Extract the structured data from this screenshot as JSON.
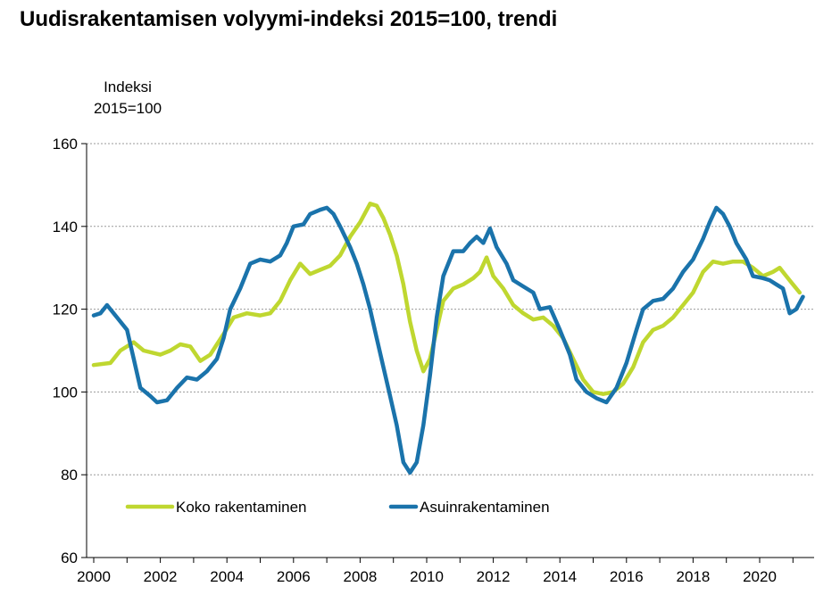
{
  "title": "Uudisrakentamisen volyymi-indeksi 2015=100, trendi",
  "chart_data": {
    "type": "line",
    "title": "Uudisrakentamisen volyymi-indeksi 2015=100, trendi",
    "ylabel": [
      "Indeksi",
      "2015=100"
    ],
    "xlabel": "",
    "xlim": [
      2000,
      2021.3
    ],
    "ylim": [
      60,
      160
    ],
    "yticks": [
      "60",
      "80",
      "100",
      "120",
      "140",
      "160"
    ],
    "xticks": [
      "2000",
      "2002",
      "2004",
      "2006",
      "2008",
      "2010",
      "2012",
      "2014",
      "2016",
      "2018",
      "2020"
    ],
    "grid": "horizontal dotted",
    "legend_position": "lower-left",
    "series": [
      {
        "name": "Koko rakentaminen",
        "color": "#bfd730",
        "points": [
          [
            2000.0,
            106.5
          ],
          [
            2000.5,
            107
          ],
          [
            2000.8,
            110
          ],
          [
            2001.2,
            112
          ],
          [
            2001.5,
            110
          ],
          [
            2002.0,
            109
          ],
          [
            2002.3,
            110
          ],
          [
            2002.6,
            111.5
          ],
          [
            2002.9,
            111
          ],
          [
            2003.2,
            107.5
          ],
          [
            2003.5,
            109
          ],
          [
            2003.9,
            114
          ],
          [
            2004.2,
            118
          ],
          [
            2004.6,
            119
          ],
          [
            2005.0,
            118.5
          ],
          [
            2005.3,
            119
          ],
          [
            2005.6,
            122
          ],
          [
            2005.9,
            127
          ],
          [
            2006.2,
            131
          ],
          [
            2006.5,
            128.5
          ],
          [
            2006.8,
            129.5
          ],
          [
            2007.1,
            130.5
          ],
          [
            2007.4,
            133
          ],
          [
            2007.7,
            137.5
          ],
          [
            2008.0,
            141
          ],
          [
            2008.3,
            145.5
          ],
          [
            2008.5,
            145
          ],
          [
            2008.7,
            142
          ],
          [
            2008.9,
            138
          ],
          [
            2009.1,
            133
          ],
          [
            2009.3,
            126
          ],
          [
            2009.5,
            117
          ],
          [
            2009.7,
            110
          ],
          [
            2009.9,
            105
          ],
          [
            2010.1,
            108
          ],
          [
            2010.3,
            115
          ],
          [
            2010.5,
            122
          ],
          [
            2010.8,
            125
          ],
          [
            2011.1,
            126
          ],
          [
            2011.4,
            127.5
          ],
          [
            2011.6,
            129
          ],
          [
            2011.8,
            132.5
          ],
          [
            2012.0,
            128
          ],
          [
            2012.3,
            125
          ],
          [
            2012.6,
            121
          ],
          [
            2012.9,
            119
          ],
          [
            2013.2,
            117.5
          ],
          [
            2013.5,
            118
          ],
          [
            2013.8,
            116
          ],
          [
            2014.1,
            113
          ],
          [
            2014.4,
            108
          ],
          [
            2014.7,
            103
          ],
          [
            2015.0,
            100
          ],
          [
            2015.3,
            99.5
          ],
          [
            2015.6,
            100
          ],
          [
            2015.9,
            102
          ],
          [
            2016.2,
            106
          ],
          [
            2016.5,
            112
          ],
          [
            2016.8,
            115
          ],
          [
            2017.1,
            116
          ],
          [
            2017.4,
            118
          ],
          [
            2017.7,
            121
          ],
          [
            2018.0,
            124
          ],
          [
            2018.3,
            129
          ],
          [
            2018.6,
            131.5
          ],
          [
            2018.9,
            131
          ],
          [
            2019.2,
            131.5
          ],
          [
            2019.5,
            131.5
          ],
          [
            2019.8,
            130
          ],
          [
            2020.1,
            128
          ],
          [
            2020.4,
            129
          ],
          [
            2020.6,
            130
          ],
          [
            2020.8,
            128
          ],
          [
            2021.0,
            126
          ],
          [
            2021.2,
            124
          ]
        ]
      },
      {
        "name": "Asuinrakentaminen",
        "color": "#1a73ab",
        "points": [
          [
            2000.0,
            118.5
          ],
          [
            2000.2,
            119
          ],
          [
            2000.4,
            121
          ],
          [
            2000.7,
            118
          ],
          [
            2001.0,
            115
          ],
          [
            2001.2,
            108
          ],
          [
            2001.4,
            101
          ],
          [
            2001.7,
            99
          ],
          [
            2001.9,
            97.5
          ],
          [
            2002.2,
            98
          ],
          [
            2002.5,
            101
          ],
          [
            2002.8,
            103.5
          ],
          [
            2003.1,
            103
          ],
          [
            2003.4,
            105
          ],
          [
            2003.7,
            108
          ],
          [
            2003.9,
            113
          ],
          [
            2004.1,
            120
          ],
          [
            2004.4,
            125
          ],
          [
            2004.7,
            131
          ],
          [
            2005.0,
            132
          ],
          [
            2005.3,
            131.5
          ],
          [
            2005.6,
            133
          ],
          [
            2005.8,
            136
          ],
          [
            2006.0,
            140
          ],
          [
            2006.3,
            140.5
          ],
          [
            2006.5,
            143
          ],
          [
            2006.8,
            144
          ],
          [
            2007.0,
            144.5
          ],
          [
            2007.2,
            143
          ],
          [
            2007.4,
            140
          ],
          [
            2007.7,
            135
          ],
          [
            2007.9,
            131
          ],
          [
            2008.1,
            126
          ],
          [
            2008.3,
            120
          ],
          [
            2008.5,
            113
          ],
          [
            2008.7,
            106
          ],
          [
            2008.9,
            99
          ],
          [
            2009.1,
            92
          ],
          [
            2009.3,
            83
          ],
          [
            2009.5,
            80.5
          ],
          [
            2009.7,
            83
          ],
          [
            2009.9,
            92
          ],
          [
            2010.1,
            104
          ],
          [
            2010.3,
            118
          ],
          [
            2010.5,
            128
          ],
          [
            2010.8,
            134
          ],
          [
            2011.1,
            134
          ],
          [
            2011.3,
            136
          ],
          [
            2011.5,
            137.5
          ],
          [
            2011.7,
            136
          ],
          [
            2011.9,
            139.5
          ],
          [
            2012.1,
            135
          ],
          [
            2012.4,
            131
          ],
          [
            2012.6,
            127
          ],
          [
            2012.9,
            125.5
          ],
          [
            2013.2,
            124
          ],
          [
            2013.4,
            120
          ],
          [
            2013.7,
            120.5
          ],
          [
            2014.0,
            115
          ],
          [
            2014.3,
            109
          ],
          [
            2014.5,
            103
          ],
          [
            2014.8,
            100
          ],
          [
            2015.1,
            98.5
          ],
          [
            2015.4,
            97.5
          ],
          [
            2015.7,
            101
          ],
          [
            2016.0,
            107
          ],
          [
            2016.3,
            115
          ],
          [
            2016.5,
            120
          ],
          [
            2016.8,
            122
          ],
          [
            2017.1,
            122.5
          ],
          [
            2017.4,
            125
          ],
          [
            2017.7,
            129
          ],
          [
            2018.0,
            132
          ],
          [
            2018.3,
            137
          ],
          [
            2018.5,
            141
          ],
          [
            2018.7,
            144.5
          ],
          [
            2018.9,
            143
          ],
          [
            2019.1,
            140
          ],
          [
            2019.3,
            136
          ],
          [
            2019.6,
            132
          ],
          [
            2019.8,
            128
          ],
          [
            2020.1,
            127.5
          ],
          [
            2020.3,
            127
          ],
          [
            2020.5,
            126
          ],
          [
            2020.7,
            125
          ],
          [
            2020.9,
            119
          ],
          [
            2021.1,
            120
          ],
          [
            2021.3,
            123
          ]
        ]
      }
    ]
  }
}
